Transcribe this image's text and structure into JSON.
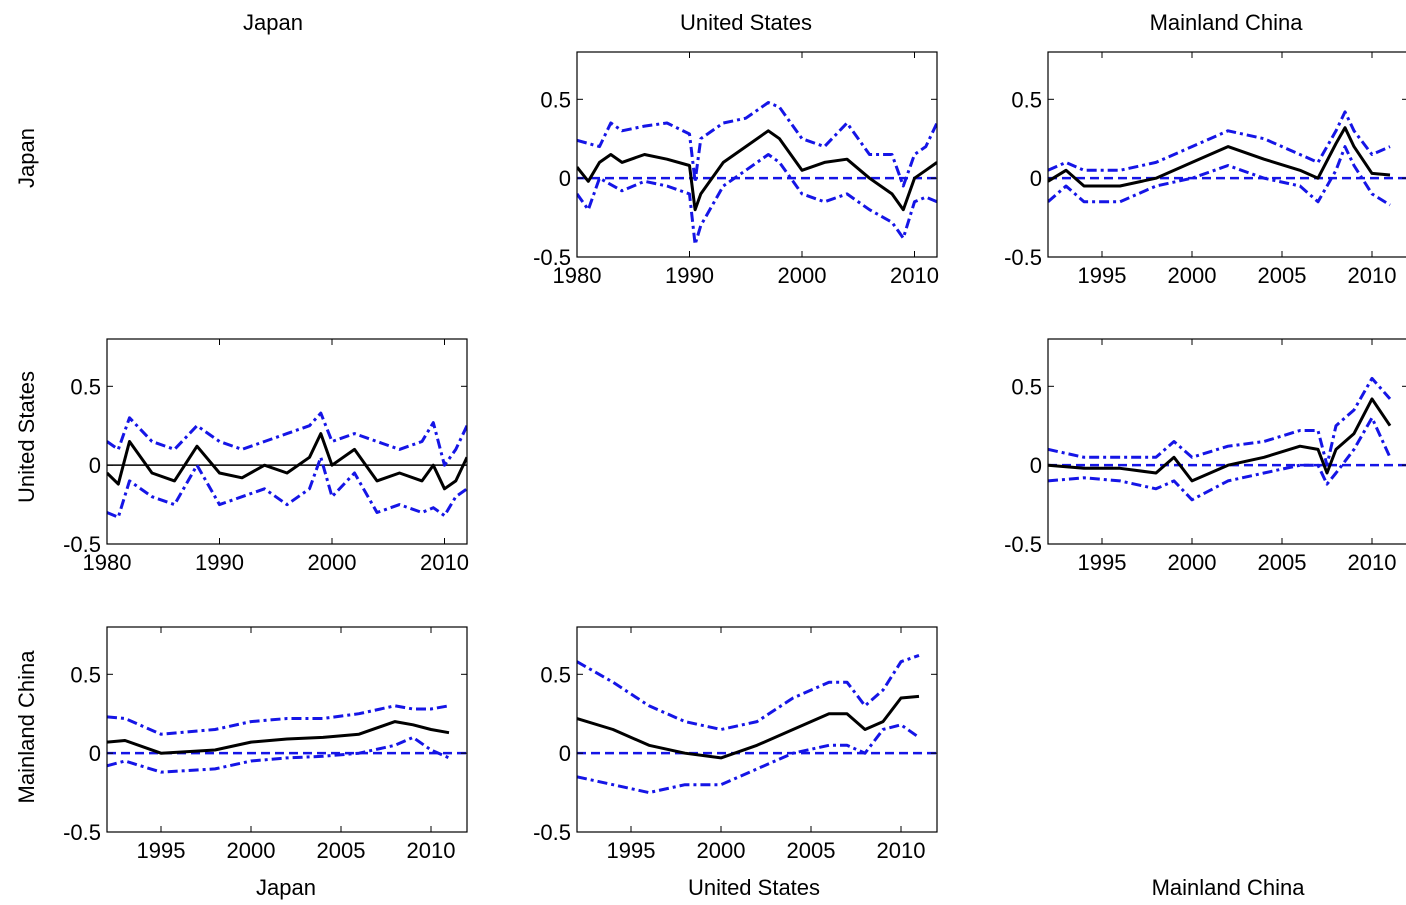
{
  "figure": {
    "col_titles": [
      "Japan",
      "United States",
      "Mainland China"
    ],
    "row_labels": [
      "Japan",
      "United States",
      "Mainland China"
    ],
    "bottom_labels": [
      "Japan",
      "United States",
      "Mainland China"
    ]
  },
  "colors": {
    "median": "#000000",
    "band": "#1515e6",
    "zero": "#1515e6"
  },
  "chart_data": [
    {
      "type": "line",
      "row": 0,
      "col": 1,
      "xlim": [
        1980,
        2012
      ],
      "ylim": [
        -0.5,
        0.8
      ],
      "xticks": [
        "1980",
        "1990",
        "2000",
        "2010"
      ],
      "yticks": [
        "-0.5",
        "0",
        "0.5"
      ],
      "zero_line": "dashed",
      "series": [
        {
          "role": "upper",
          "x": [
            1980,
            1982,
            1983,
            1984,
            1986,
            1988,
            1990,
            1990.5,
            1991,
            1993,
            1995,
            1997,
            1998,
            2000,
            2002,
            2004,
            2006,
            2008,
            2009,
            2010,
            2011,
            2012
          ],
          "y": [
            0.24,
            0.2,
            0.35,
            0.3,
            0.33,
            0.35,
            0.28,
            -0.02,
            0.25,
            0.35,
            0.38,
            0.48,
            0.45,
            0.25,
            0.2,
            0.35,
            0.15,
            0.15,
            -0.05,
            0.15,
            0.2,
            0.35
          ]
        },
        {
          "role": "median",
          "x": [
            1980,
            1981,
            1982,
            1983,
            1984,
            1986,
            1988,
            1990,
            1990.5,
            1991,
            1993,
            1995,
            1997,
            1998,
            2000,
            2002,
            2004,
            2006,
            2008,
            2009,
            2010,
            2011,
            2012
          ],
          "y": [
            0.07,
            -0.02,
            0.1,
            0.15,
            0.1,
            0.15,
            0.12,
            0.08,
            -0.2,
            -0.1,
            0.1,
            0.2,
            0.3,
            0.25,
            0.05,
            0.1,
            0.12,
            0.0,
            -0.1,
            -0.2,
            0.0,
            0.05,
            0.1
          ]
        },
        {
          "role": "lower",
          "x": [
            1980,
            1981,
            1982,
            1984,
            1986,
            1988,
            1990,
            1990.5,
            1991,
            1993,
            1995,
            1997,
            1998,
            2000,
            2002,
            2004,
            2006,
            2008,
            2009,
            2010,
            2011,
            2012
          ],
          "y": [
            -0.1,
            -0.2,
            0.0,
            -0.08,
            -0.02,
            -0.05,
            -0.1,
            -0.42,
            -0.3,
            -0.05,
            0.05,
            0.15,
            0.1,
            -0.1,
            -0.15,
            -0.1,
            -0.2,
            -0.28,
            -0.38,
            -0.15,
            -0.12,
            -0.15
          ]
        }
      ]
    },
    {
      "type": "line",
      "row": 0,
      "col": 2,
      "xlim": [
        1992,
        2012
      ],
      "ylim": [
        -0.5,
        0.8
      ],
      "xticks": [
        "1995",
        "2000",
        "2005",
        "2010"
      ],
      "yticks": [
        "-0.5",
        "0",
        "0.5"
      ],
      "zero_line": "dashed",
      "series": [
        {
          "role": "upper",
          "x": [
            1992,
            1993,
            1994,
            1996,
            1998,
            2000,
            2002,
            2004,
            2006,
            2007,
            2008,
            2008.5,
            2009,
            2010,
            2011
          ],
          "y": [
            0.05,
            0.1,
            0.05,
            0.05,
            0.1,
            0.2,
            0.3,
            0.25,
            0.15,
            0.1,
            0.3,
            0.42,
            0.3,
            0.15,
            0.2
          ]
        },
        {
          "role": "median",
          "x": [
            1992,
            1993,
            1994,
            1996,
            1998,
            2000,
            2002,
            2004,
            2006,
            2007,
            2008,
            2008.5,
            2009,
            2010,
            2011
          ],
          "y": [
            -0.02,
            0.05,
            -0.05,
            -0.05,
            0.0,
            0.1,
            0.2,
            0.12,
            0.05,
            0.0,
            0.22,
            0.32,
            0.2,
            0.03,
            0.02
          ]
        },
        {
          "role": "lower",
          "x": [
            1992,
            1993,
            1994,
            1996,
            1998,
            2000,
            2002,
            2004,
            2006,
            2007,
            2008,
            2008.5,
            2009,
            2010,
            2011
          ],
          "y": [
            -0.15,
            -0.05,
            -0.15,
            -0.15,
            -0.05,
            0.0,
            0.08,
            0.0,
            -0.05,
            -0.15,
            0.05,
            0.2,
            0.08,
            -0.1,
            -0.17
          ]
        }
      ]
    },
    {
      "type": "line",
      "row": 1,
      "col": 0,
      "xlim": [
        1980,
        2012
      ],
      "ylim": [
        -0.5,
        0.8
      ],
      "xticks": [
        "1980",
        "1990",
        "2000",
        "2010"
      ],
      "yticks": [
        "-0.5",
        "0",
        "0.5"
      ],
      "zero_line": "solid",
      "series": [
        {
          "role": "upper",
          "x": [
            1980,
            1981,
            1982,
            1984,
            1986,
            1988,
            1990,
            1992,
            1994,
            1996,
            1998,
            1999,
            2000,
            2002,
            2004,
            2006,
            2008,
            2009,
            2010,
            2011,
            2012
          ],
          "y": [
            0.15,
            0.1,
            0.3,
            0.15,
            0.1,
            0.25,
            0.15,
            0.1,
            0.15,
            0.2,
            0.25,
            0.33,
            0.15,
            0.2,
            0.15,
            0.1,
            0.15,
            0.27,
            0.0,
            0.1,
            0.25
          ]
        },
        {
          "role": "median",
          "x": [
            1980,
            1981,
            1982,
            1984,
            1986,
            1988,
            1990,
            1992,
            1994,
            1996,
            1998,
            1999,
            2000,
            2002,
            2004,
            2006,
            2008,
            2009,
            2010,
            2011,
            2012
          ],
          "y": [
            -0.05,
            -0.12,
            0.15,
            -0.05,
            -0.1,
            0.12,
            -0.05,
            -0.08,
            0.0,
            -0.05,
            0.05,
            0.2,
            0.0,
            0.1,
            -0.1,
            -0.05,
            -0.1,
            0.0,
            -0.15,
            -0.1,
            0.05
          ]
        },
        {
          "role": "lower",
          "x": [
            1980,
            1981,
            1982,
            1984,
            1986,
            1988,
            1990,
            1992,
            1994,
            1996,
            1998,
            1999,
            2000,
            2002,
            2004,
            2006,
            2008,
            2009,
            2010,
            2011,
            2012
          ],
          "y": [
            -0.3,
            -0.33,
            -0.1,
            -0.2,
            -0.25,
            0.0,
            -0.25,
            -0.2,
            -0.15,
            -0.25,
            -0.15,
            0.05,
            -0.2,
            -0.05,
            -0.3,
            -0.25,
            -0.3,
            -0.27,
            -0.32,
            -0.2,
            -0.15
          ]
        }
      ]
    },
    {
      "type": "line",
      "row": 1,
      "col": 2,
      "xlim": [
        1992,
        2012
      ],
      "ylim": [
        -0.5,
        0.8
      ],
      "xticks": [
        "1995",
        "2000",
        "2005",
        "2010"
      ],
      "yticks": [
        "-0.5",
        "0",
        "0.5"
      ],
      "zero_line": "dashed",
      "series": [
        {
          "role": "upper",
          "x": [
            1992,
            1994,
            1996,
            1998,
            1999,
            2000,
            2002,
            2004,
            2006,
            2007,
            2007.5,
            2008,
            2009,
            2010,
            2011
          ],
          "y": [
            0.1,
            0.05,
            0.05,
            0.05,
            0.15,
            0.05,
            0.12,
            0.15,
            0.22,
            0.22,
            0.0,
            0.25,
            0.35,
            0.55,
            0.42
          ]
        },
        {
          "role": "median",
          "x": [
            1992,
            1994,
            1996,
            1998,
            1999,
            2000,
            2002,
            2004,
            2006,
            2007,
            2007.5,
            2008,
            2009,
            2010,
            2011
          ],
          "y": [
            0.0,
            -0.02,
            -0.02,
            -0.05,
            0.05,
            -0.1,
            0.0,
            0.05,
            0.12,
            0.1,
            -0.05,
            0.1,
            0.2,
            0.42,
            0.25
          ]
        },
        {
          "role": "lower",
          "x": [
            1992,
            1994,
            1996,
            1998,
            1999,
            2000,
            2002,
            2004,
            2006,
            2007,
            2007.5,
            2008,
            2009,
            2010,
            2011
          ],
          "y": [
            -0.1,
            -0.08,
            -0.1,
            -0.15,
            -0.1,
            -0.22,
            -0.1,
            -0.05,
            0.0,
            0.0,
            -0.12,
            -0.05,
            0.1,
            0.3,
            0.05
          ]
        }
      ]
    },
    {
      "type": "line",
      "row": 2,
      "col": 0,
      "xlim": [
        1992,
        2012
      ],
      "ylim": [
        -0.5,
        0.8
      ],
      "xticks": [
        "1995",
        "2000",
        "2005",
        "2010"
      ],
      "yticks": [
        "-0.5",
        "0",
        "0.5"
      ],
      "zero_line": "dashed",
      "series": [
        {
          "role": "upper",
          "x": [
            1992,
            1993,
            1995,
            1998,
            2000,
            2002,
            2004,
            2006,
            2008,
            2009,
            2010,
            2011
          ],
          "y": [
            0.23,
            0.22,
            0.12,
            0.15,
            0.2,
            0.22,
            0.22,
            0.25,
            0.3,
            0.28,
            0.28,
            0.3
          ]
        },
        {
          "role": "median",
          "x": [
            1992,
            1993,
            1995,
            1998,
            2000,
            2002,
            2004,
            2006,
            2008,
            2009,
            2010,
            2011
          ],
          "y": [
            0.07,
            0.08,
            0.0,
            0.02,
            0.07,
            0.09,
            0.1,
            0.12,
            0.2,
            0.18,
            0.15,
            0.13
          ]
        },
        {
          "role": "lower",
          "x": [
            1992,
            1993,
            1995,
            1998,
            2000,
            2002,
            2004,
            2006,
            2008,
            2009,
            2010,
            2011
          ],
          "y": [
            -0.08,
            -0.05,
            -0.12,
            -0.1,
            -0.05,
            -0.03,
            -0.02,
            0.0,
            0.05,
            0.1,
            0.02,
            -0.03
          ]
        }
      ]
    },
    {
      "type": "line",
      "row": 2,
      "col": 1,
      "xlim": [
        1992,
        2012
      ],
      "ylim": [
        -0.5,
        0.8
      ],
      "xticks": [
        "1995",
        "2000",
        "2005",
        "2010"
      ],
      "yticks": [
        "-0.5",
        "0",
        "0.5"
      ],
      "zero_line": "dashed",
      "series": [
        {
          "role": "upper",
          "x": [
            1992,
            1994,
            1996,
            1998,
            2000,
            2002,
            2004,
            2006,
            2007,
            2008,
            2009,
            2010,
            2011
          ],
          "y": [
            0.58,
            0.45,
            0.3,
            0.2,
            0.15,
            0.2,
            0.35,
            0.45,
            0.45,
            0.3,
            0.4,
            0.58,
            0.62
          ]
        },
        {
          "role": "median",
          "x": [
            1992,
            1994,
            1996,
            1998,
            2000,
            2002,
            2004,
            2006,
            2007,
            2008,
            2009,
            2010,
            2011
          ],
          "y": [
            0.22,
            0.15,
            0.05,
            0.0,
            -0.03,
            0.05,
            0.15,
            0.25,
            0.25,
            0.15,
            0.2,
            0.35,
            0.36
          ]
        },
        {
          "role": "lower",
          "x": [
            1992,
            1994,
            1996,
            1998,
            2000,
            2002,
            2004,
            2006,
            2007,
            2008,
            2009,
            2010,
            2011
          ],
          "y": [
            -0.15,
            -0.2,
            -0.25,
            -0.2,
            -0.2,
            -0.1,
            0.0,
            0.05,
            0.05,
            0.0,
            0.15,
            0.18,
            0.1
          ]
        }
      ]
    }
  ]
}
